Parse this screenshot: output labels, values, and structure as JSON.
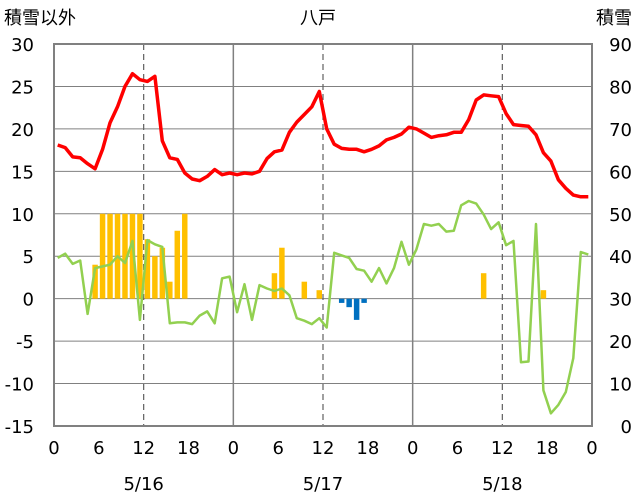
{
  "chart_data": {
    "type": "line",
    "title": "八戸",
    "left_axis_title": "積雪以外",
    "right_axis_title": "積雪",
    "left_ylim": [
      -15,
      30
    ],
    "left_ticks": [
      "30",
      "25",
      "20",
      "15",
      "10",
      "5",
      "0",
      "-5",
      "-10",
      "-15"
    ],
    "right_ylim": [
      0,
      90
    ],
    "right_ticks": [
      "90",
      "80",
      "70",
      "60",
      "50",
      "40",
      "30",
      "20",
      "10",
      "0"
    ],
    "xlim": [
      0,
      72
    ],
    "x_ticks": [
      "0",
      "6",
      "12",
      "18",
      "0",
      "6",
      "12",
      "18",
      "0",
      "6",
      "12",
      "18",
      "0"
    ],
    "date_labels": [
      "5/16",
      "5/17",
      "5/18"
    ],
    "grid": true,
    "colors": {
      "red_line": "#ff0000",
      "green_line": "#92d050",
      "orange_bar": "#ffc000",
      "blue_bar": "#0070c0"
    },
    "series": [
      {
        "kind": "line",
        "axis": "left",
        "color": "#ff0000",
        "x": [
          0,
          1,
          2,
          3,
          4,
          5,
          6,
          7,
          8,
          9,
          10,
          11,
          12,
          13,
          14,
          15,
          16,
          17,
          18,
          19,
          20,
          21,
          22,
          23,
          24,
          25,
          26,
          27,
          28,
          29,
          30,
          31,
          32,
          33,
          34,
          35,
          36,
          37,
          38,
          39,
          40,
          41,
          42,
          43,
          44,
          45,
          46,
          47,
          48,
          49,
          50,
          51,
          52,
          53,
          54,
          55,
          56,
          57,
          58,
          59,
          60,
          61,
          62,
          63,
          64,
          65,
          66,
          67,
          68,
          69,
          70,
          71
        ],
        "values": [
          18.1,
          17.8,
          16.7,
          16.6,
          15.9,
          15.3,
          17.6,
          20.7,
          22.6,
          25.0,
          26.5,
          25.8,
          25.6,
          26.2,
          18.6,
          16.6,
          16.4,
          14.8,
          14.1,
          13.9,
          14.4,
          15.2,
          14.6,
          14.8,
          14.6,
          14.8,
          14.7,
          15.0,
          16.5,
          17.3,
          17.5,
          19.6,
          20.8,
          21.7,
          22.6,
          24.4,
          20.0,
          18.2,
          17.7,
          17.6,
          17.6,
          17.3,
          17.6,
          18.0,
          18.7,
          19.0,
          19.4,
          20.2,
          20.0,
          19.5,
          19.0,
          19.2,
          19.3,
          19.6,
          19.6,
          21.1,
          23.4,
          24.0,
          23.9,
          23.8,
          21.8,
          20.5,
          20.4,
          20.3,
          19.3,
          17.2,
          16.2,
          14.0,
          13.0,
          12.2,
          12.0,
          12.0
        ]
      },
      {
        "kind": "line",
        "axis": "left",
        "color": "#92d050",
        "x": [
          0,
          1,
          2,
          3,
          4,
          5,
          6,
          7,
          8,
          9,
          10,
          11,
          12,
          13,
          14,
          15,
          16,
          17,
          18,
          19,
          20,
          21,
          22,
          23,
          24,
          25,
          26,
          27,
          28,
          29,
          30,
          31,
          32,
          33,
          34,
          35,
          36,
          37,
          38,
          39,
          40,
          41,
          42,
          43,
          44,
          45,
          46,
          47,
          48,
          49,
          50,
          51,
          52,
          53,
          54,
          55,
          56,
          57,
          58,
          59,
          60,
          61,
          62,
          63,
          64,
          65,
          66,
          67,
          68,
          69,
          70,
          71
        ],
        "values": [
          4.8,
          5.3,
          4.1,
          4.5,
          -1.8,
          3.6,
          3.8,
          4.0,
          5.0,
          4.2,
          6.8,
          -2.5,
          6.9,
          6.4,
          6.1,
          -2.9,
          -2.8,
          -2.8,
          -3.0,
          -2.0,
          -1.5,
          -2.9,
          2.4,
          2.6,
          -1.6,
          1.7,
          -2.5,
          1.6,
          1.2,
          0.9,
          1.2,
          0.4,
          -2.3,
          -2.6,
          -3.0,
          -2.3,
          -3.4,
          5.4,
          5.1,
          4.8,
          3.5,
          3.3,
          2.0,
          3.6,
          1.8,
          3.6,
          6.7,
          4.0,
          5.8,
          8.8,
          8.6,
          8.8,
          7.9,
          8.0,
          11.0,
          11.5,
          11.2,
          9.9,
          8.2,
          9.0,
          6.3,
          6.8,
          -7.5,
          -7.4,
          8.8,
          -10.8,
          -13.5,
          -12.5,
          -11.0,
          -7.0,
          5.5,
          5.2
        ]
      },
      {
        "kind": "bar",
        "axis": "left",
        "color": "#ffc000",
        "x": [
          5,
          6,
          7,
          8,
          9,
          10,
          11,
          12,
          13,
          14,
          15,
          16,
          17,
          29,
          30,
          33,
          35,
          57,
          65
        ],
        "values": [
          4,
          10,
          10,
          10,
          10,
          10,
          10,
          7,
          5,
          6,
          2,
          8,
          10,
          3,
          6,
          2,
          1,
          3,
          1
        ]
      },
      {
        "kind": "bar",
        "axis": "left",
        "color": "#0070c0",
        "x": [
          38,
          39,
          40,
          41
        ],
        "values": [
          -0.5,
          -1,
          -2.5,
          -0.5
        ]
      }
    ]
  }
}
